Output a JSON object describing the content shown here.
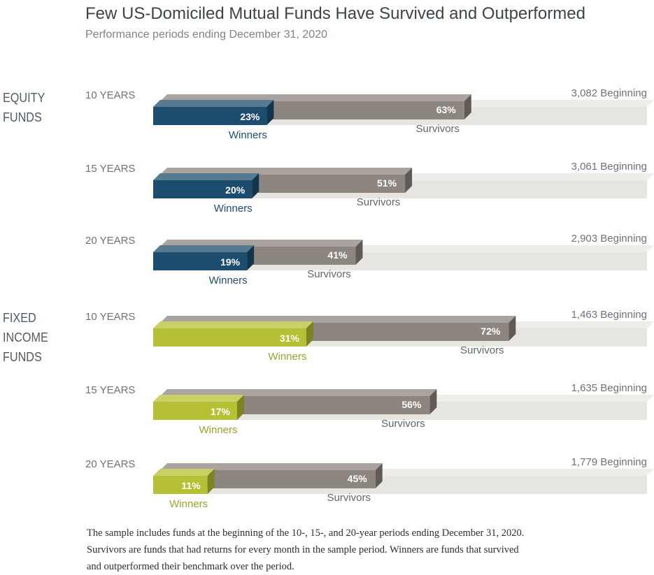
{
  "title": "Few US-Domiciled Mutual Funds Have Survived and Outperformed",
  "subtitle": "Performance periods ending December 31, 2020",
  "groups": [
    {
      "label": "EQUITY\nFUNDS"
    },
    {
      "label": "FIXED\nINCOME\nFUNDS"
    }
  ],
  "colors": {
    "beginning": "#e6e5e0",
    "survivors": "#8d8580",
    "equity_winners": "#1d4d6e",
    "fixed_winners": "#b5c035",
    "period_text": "#6b7378",
    "survivor_text": "#5f676b"
  },
  "chart_data": {
    "type": "bar",
    "bar_style": "3d horizontal nested bars",
    "series": [
      {
        "name": "Beginning"
      },
      {
        "name": "Survivors"
      },
      {
        "name": "Winners"
      }
    ],
    "rows": [
      {
        "group": "EQUITY FUNDS",
        "period": "10 YEARS",
        "beginning": 3082,
        "beginning_label": "3,082 Beginning",
        "survivors": 63,
        "survivors_label": "63%",
        "winners": 23,
        "winners_label": "23%",
        "survivors_text": "Survivors",
        "winners_text": "Winners"
      },
      {
        "group": "EQUITY FUNDS",
        "period": "15 YEARS",
        "beginning": 3061,
        "beginning_label": "3,061 Beginning",
        "survivors": 51,
        "survivors_label": "51%",
        "winners": 20,
        "winners_label": "20%",
        "survivors_text": "Survivors",
        "winners_text": "Winners"
      },
      {
        "group": "EQUITY FUNDS",
        "period": "20 YEARS",
        "beginning": 2903,
        "beginning_label": "2,903 Beginning",
        "survivors": 41,
        "survivors_label": "41%",
        "winners": 19,
        "winners_label": "19%",
        "survivors_text": "Survivors",
        "winners_text": "Winners"
      },
      {
        "group": "FIXED INCOME FUNDS",
        "period": "10 YEARS",
        "beginning": 1463,
        "beginning_label": "1,463 Beginning",
        "survivors": 72,
        "survivors_label": "72%",
        "winners": 31,
        "winners_label": "31%",
        "survivors_text": "Survivors",
        "winners_text": "Winners"
      },
      {
        "group": "FIXED INCOME FUNDS",
        "period": "15 YEARS",
        "beginning": 1635,
        "beginning_label": "1,635 Beginning",
        "survivors": 56,
        "survivors_label": "56%",
        "winners": 17,
        "winners_label": "17%",
        "survivors_text": "Survivors",
        "winners_text": "Winners"
      },
      {
        "group": "FIXED INCOME FUNDS",
        "period": "20 YEARS",
        "beginning": 1779,
        "beginning_label": "1,779 Beginning",
        "survivors": 45,
        "survivors_label": "45%",
        "winners": 11,
        "winners_label": "11%",
        "survivors_text": "Survivors",
        "winners_text": "Winners"
      }
    ]
  },
  "footnote": [
    "The sample includes funds at the beginning of the 10-, 15-, and 20-year periods ending December 31, 2020.",
    "Survivors are funds that had returns for every month in the sample period. Winners are funds that survived",
    "and outperformed their benchmark over the period."
  ]
}
